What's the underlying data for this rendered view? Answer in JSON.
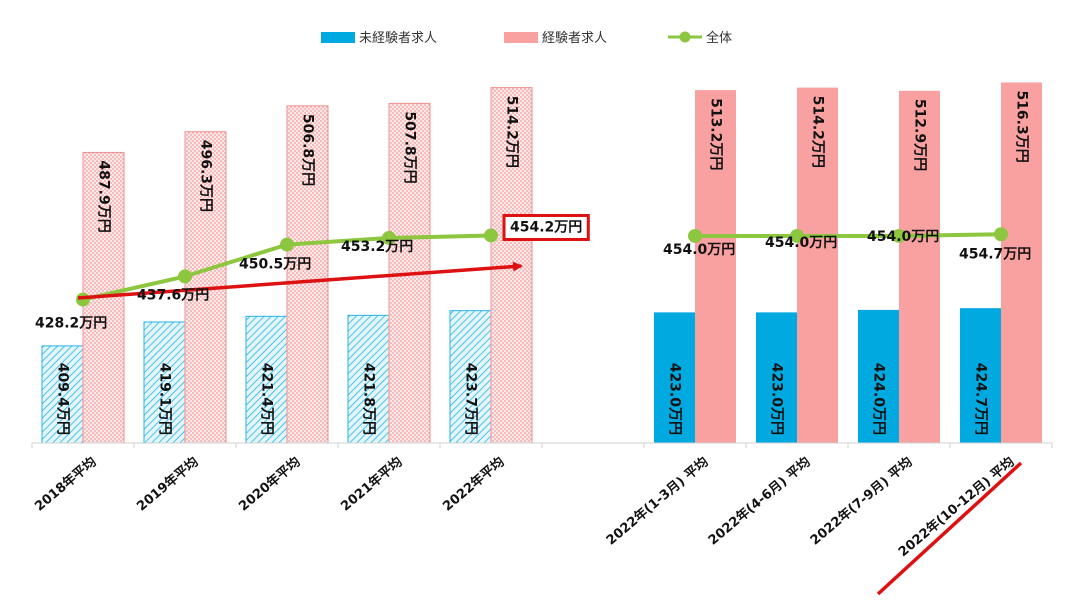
{
  "chart_data": {
    "type": "bar",
    "categories": [
      "2018年平均",
      "2019年平均",
      "2020年平均",
      "2021年平均",
      "2022年平均",
      "",
      "2022年(1-3月) 平均",
      "2022年(4-6月) 平均",
      "2022年(7-9月) 平均",
      "2022年(10-12月) 平均"
    ],
    "series": [
      {
        "name": "未経験者求人",
        "type": "bar",
        "color": "#00a9e0",
        "values": [
          409.4,
          419.1,
          421.4,
          421.8,
          423.7,
          null,
          423.0,
          423.0,
          424.0,
          424.7
        ],
        "labels": [
          "409.4万円",
          "419.1万円",
          "421.4万円",
          "421.8万円",
          "423.7万円",
          "",
          "423.0万円",
          "423.0万円",
          "424.0万円",
          "424.7万円"
        ],
        "style": [
          "hatched",
          "hatched",
          "hatched",
          "hatched",
          "hatched",
          "",
          "solid",
          "solid",
          "solid",
          "solid"
        ]
      },
      {
        "name": "経験者求人",
        "type": "bar",
        "color": "#f9a0a0",
        "values": [
          487.9,
          496.3,
          506.8,
          507.8,
          514.2,
          null,
          513.2,
          514.2,
          512.9,
          516.3
        ],
        "labels": [
          "487.9万円",
          "496.3万円",
          "506.8万円",
          "507.8万円",
          "514.2万円",
          "",
          "513.2万円",
          "514.2万円",
          "512.9万円",
          "516.3万円"
        ],
        "style": [
          "hatched",
          "hatched",
          "hatched",
          "hatched",
          "hatched",
          "",
          "solid",
          "solid",
          "solid",
          "solid"
        ]
      },
      {
        "name": "全体",
        "type": "line",
        "color": "#8dc63f",
        "values": [
          428.2,
          437.6,
          450.5,
          453.2,
          454.2,
          null,
          454.0,
          454.0,
          454.0,
          454.7
        ],
        "labels": [
          "428.2万円",
          "437.6万円",
          "450.5万円",
          "453.2万円",
          "454.2万円",
          "",
          "454.0万円",
          "454.0万円",
          "454.0万円",
          "454.7万円"
        ]
      }
    ],
    "ylim": [
      370,
      525
    ],
    "grid": false,
    "legend_position": "top",
    "highlight_color": "#dd1111"
  }
}
